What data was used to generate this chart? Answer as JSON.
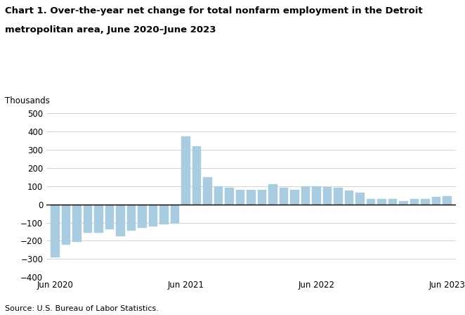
{
  "title_line1": "Chart 1. Over-the-year net change for total nonfarm employment in the Detroit",
  "title_line2": "metropolitan area, June 2020–June 2023",
  "ylabel": "Thousands",
  "source": "Source: U.S. Bureau of Labor Statistics.",
  "bar_color": "#a8cce0",
  "background_color": "#ffffff",
  "ylim": [
    -400,
    500
  ],
  "yticks": [
    -400,
    -300,
    -200,
    -100,
    0,
    100,
    200,
    300,
    400,
    500
  ],
  "values": [
    -290,
    -220,
    -205,
    -155,
    -155,
    -135,
    -175,
    -145,
    -130,
    -120,
    -110,
    -105,
    375,
    320,
    150,
    100,
    90,
    80,
    80,
    80,
    110,
    90,
    80,
    100,
    100,
    95,
    90,
    75,
    65,
    30,
    30,
    30,
    20,
    30,
    30,
    40,
    45
  ],
  "xtick_positions": [
    0,
    12,
    24,
    36
  ],
  "xtick_labels": [
    "Jun 2020",
    "Jun 2021",
    "Jun 2022",
    "Jun 2023"
  ]
}
